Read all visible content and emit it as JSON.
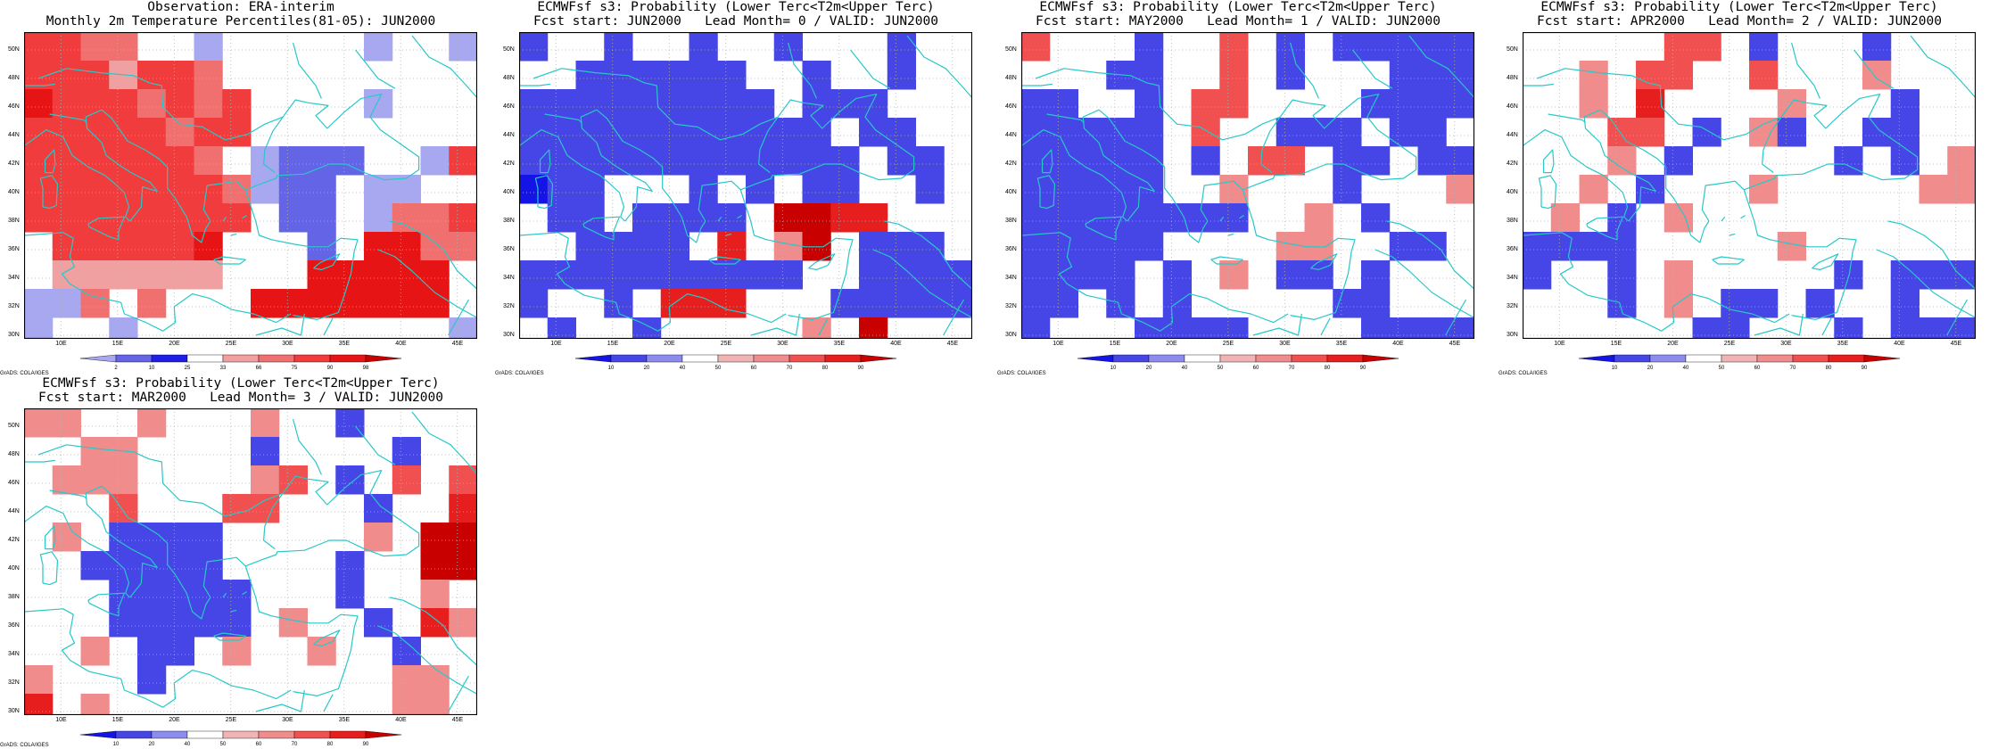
{
  "axes": {
    "lat_labels": [
      "50N",
      "48N",
      "46N",
      "44N",
      "42N",
      "40N",
      "38N",
      "36N",
      "34N",
      "32N",
      "30N"
    ],
    "lon_labels": [
      "10E",
      "15E",
      "20E",
      "25E",
      "30E",
      "35E",
      "40E",
      "45E"
    ]
  },
  "palettes": {
    "obs": {
      "colors": [
        "#a8a8f0",
        "#6464e6",
        "#1e1ee6",
        "#ffffff",
        "#f0a0a0",
        "#f07070",
        "#f03c3c",
        "#e61414",
        "#c80000"
      ],
      "labels": [
        "2",
        "10",
        "25",
        "33",
        "66",
        "75",
        "90",
        "98"
      ]
    },
    "prob": {
      "colors": [
        "#1414e6",
        "#4646e6",
        "#8c8cf0",
        "#ffffff",
        "#f0b4b4",
        "#f08c8c",
        "#f05050",
        "#e61e1e",
        "#c80000"
      ],
      "labels": [
        "10",
        "20",
        "40",
        "50",
        "60",
        "70",
        "80",
        "90"
      ]
    }
  },
  "coast_color": "#28c8c8",
  "credit": "GrADS: COLA/IGES",
  "panels": [
    {
      "title_line1": "Observation: ERA-interim",
      "title_line2": "Monthly 2m Temperature Percentiles(81-05): JUN2000",
      "palette": "obs",
      "grid": [
        "6655..w.....0..0",
        "6664665.........",
        "76665656....0...",
        "66666566........",
        "6666665.0111..06",
        "66666665011.00..",
        "66666666.11.0556",
        ".666667...1.7755",
        ".444444...77777.",
        "005.5...7777777.",
        "0..0...........w"
      ]
    },
    {
      "title_line1": "ECMWFsf s3: Probability (Lower Terc<T2m<Upper Terc)",
      "title_line2": "Fcst start: JUN2000   Lead Month= 0 / VALID: JUN2000",
      "palette": "prob",
      "grid": [
        "1..1..1..1...1..",
        "..111111..1..1..",
        "111111111.111...",
        "11111111111.11..",
        "111111111111.11.",
        "011...1.1.11..1.",
        ".11.1111.8877...",
        "..1111.7.58.111.",
        "1111111111..1111",
        "1..1.777...11111",
        ".1..1.....5.8..."
      ]
    },
    {
      "title_line1": "ECMWFsf s3: Probability (Lower Terc<T2m<Upper Terc)",
      "title_line2": "Fcst start: MAY2000   Lead Month= 1 / VALID: JUN2000",
      "palette": "prob",
      "grid": [
        "6...1..6.1.11111",
        "...11..6.1...111",
        "11..1.66....1111",
        "11111.6..111.11.",
        "11111.1.66.11.11",
        "11111..5...1...5",
        "11111111..5.1...",
        "11111....55..11.",
        "1111.1.5.11.1...",
        "11.1.1.....11...",
        "1...1111....1111"
      ]
    },
    {
      "title_line1": "ECMWFsf s3: Probability (Lower Terc<T2m<Upper Terc)",
      "title_line2": "Fcst start: APR2000   Lead Month= 2 / VALID: JUN2000",
      "palette": "prob",
      "grid": [
        ".....66.1...1...",
        "..5.66..6...5...",
        "..5.7....5...1..",
        "...66.1.51..11..",
        "...5.1.....1.1.5",
        "..5.1...5.....55",
        ".5.1.5..........",
        "1111.....5......",
        "1..1.5.....1.111",
        "...1.5.11.1..1..",
        "......11...1.111"
      ]
    },
    {
      "title_line1": "ECMWFsf s3: Probability (Lower Terc<T2m<Upper Terc)",
      "title_line2": "Fcst start: MAR2000   Lead Month= 3 / VALID: JUN2000",
      "palette": "prob",
      "grid": [
        "55..5...5..1....",
        "..55....1....1..",
        ".555....56.1.6.6",
        "...6...66...1..7",
        ".5.1111.....5.88",
        "..11111....1..88",
        "...11111...1..5.",
        "...11111.5..1.75",
        "..5.11.5..5..1..",
        "5...1........55.",
        "7.5..........55."
      ]
    }
  ]
}
